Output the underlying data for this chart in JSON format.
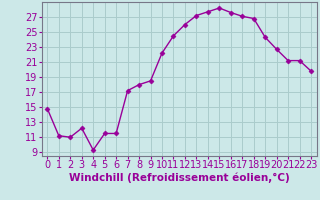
{
  "x": [
    0,
    1,
    2,
    3,
    4,
    5,
    6,
    7,
    8,
    9,
    10,
    11,
    12,
    13,
    14,
    15,
    16,
    17,
    18,
    19,
    20,
    21,
    22,
    23
  ],
  "y": [
    14.8,
    11.2,
    11.0,
    12.2,
    9.3,
    11.5,
    11.5,
    17.2,
    18.0,
    18.5,
    22.2,
    24.5,
    26.0,
    27.2,
    27.7,
    28.2,
    27.6,
    27.1,
    26.8,
    24.3,
    22.7,
    21.2,
    21.2,
    19.8
  ],
  "line_color": "#990099",
  "marker": "D",
  "marker_size": 2.5,
  "bg_color": "#cce8e8",
  "grid_color": "#aacccc",
  "xlabel": "Windchill (Refroidissement éolien,°C)",
  "xlabel_fontsize": 7.5,
  "tick_fontsize": 7,
  "ylim": [
    8.5,
    29
  ],
  "yticks": [
    9,
    11,
    13,
    15,
    17,
    19,
    21,
    23,
    25,
    27
  ],
  "xticks": [
    0,
    1,
    2,
    3,
    4,
    5,
    6,
    7,
    8,
    9,
    10,
    11,
    12,
    13,
    14,
    15,
    16,
    17,
    18,
    19,
    20,
    21,
    22,
    23
  ],
  "spine_color": "#888888",
  "border_color": "#777788"
}
